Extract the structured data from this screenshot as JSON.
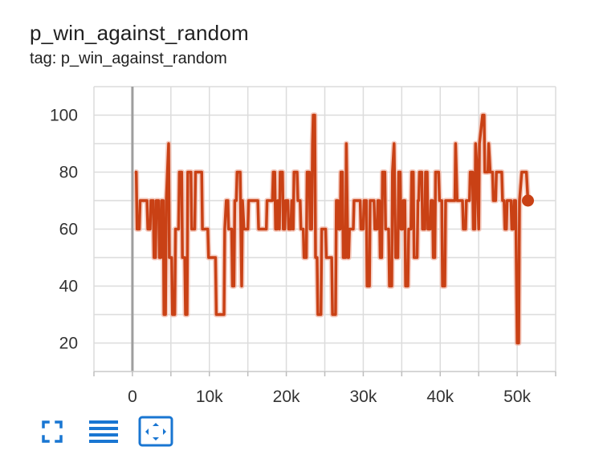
{
  "card": {
    "title": "p_win_against_random",
    "subtitle": "tag: p_win_against_random"
  },
  "toolbar": {
    "buttons": [
      {
        "icon": "fullscreen-icon"
      },
      {
        "icon": "toggle-y-log-icon"
      },
      {
        "icon": "fit-domain-icon"
      }
    ]
  },
  "chart_data": {
    "type": "line",
    "title": "",
    "xlabel": "",
    "ylabel": "",
    "xlim": [
      -5000,
      55000
    ],
    "ylim": [
      10,
      110
    ],
    "x_ticks": [
      0,
      10000,
      20000,
      30000,
      40000,
      50000
    ],
    "x_tick_labels": [
      "0",
      "10k",
      "20k",
      "30k",
      "40k",
      "50k"
    ],
    "y_ticks": [
      20,
      40,
      60,
      80,
      100
    ],
    "y_tick_labels": [
      "20",
      "40",
      "60",
      "80",
      "100"
    ],
    "grid": true,
    "line_color": "#c94115",
    "shadow_color": "#f1b8a8",
    "series": [
      {
        "name": "",
        "values": [
          [
            300,
            80
          ],
          [
            500,
            80
          ],
          [
            600,
            60
          ],
          [
            900,
            60
          ],
          [
            1000,
            70
          ],
          [
            1900,
            70
          ],
          [
            2000,
            60
          ],
          [
            2300,
            60
          ],
          [
            2400,
            70
          ],
          [
            2700,
            70
          ],
          [
            2800,
            50
          ],
          [
            3000,
            50
          ],
          [
            3100,
            70
          ],
          [
            3400,
            70
          ],
          [
            3500,
            50
          ],
          [
            3700,
            50
          ],
          [
            3800,
            70
          ],
          [
            4000,
            70
          ],
          [
            4100,
            30
          ],
          [
            4300,
            30
          ],
          [
            4400,
            70
          ],
          [
            4700,
            90
          ],
          [
            4800,
            50
          ],
          [
            5100,
            50
          ],
          [
            5200,
            30
          ],
          [
            5500,
            30
          ],
          [
            5600,
            60
          ],
          [
            6000,
            60
          ],
          [
            6100,
            80
          ],
          [
            6400,
            80
          ],
          [
            6500,
            50
          ],
          [
            6800,
            50
          ],
          [
            6900,
            30
          ],
          [
            7100,
            30
          ],
          [
            7200,
            80
          ],
          [
            7600,
            80
          ],
          [
            7700,
            60
          ],
          [
            8100,
            60
          ],
          [
            8200,
            80
          ],
          [
            9000,
            80
          ],
          [
            9100,
            60
          ],
          [
            9800,
            60
          ],
          [
            9900,
            50
          ],
          [
            10800,
            50
          ],
          [
            10900,
            30
          ],
          [
            11900,
            30
          ],
          [
            12000,
            60
          ],
          [
            12200,
            70
          ],
          [
            12400,
            70
          ],
          [
            12500,
            60
          ],
          [
            12900,
            60
          ],
          [
            13000,
            40
          ],
          [
            13200,
            40
          ],
          [
            13300,
            70
          ],
          [
            13500,
            70
          ],
          [
            13600,
            80
          ],
          [
            14000,
            80
          ],
          [
            14100,
            60
          ],
          [
            14200,
            40
          ],
          [
            14300,
            70
          ],
          [
            14500,
            60
          ],
          [
            15000,
            60
          ],
          [
            15100,
            70
          ],
          [
            16300,
            70
          ],
          [
            16400,
            60
          ],
          [
            17400,
            60
          ],
          [
            17500,
            70
          ],
          [
            18200,
            70
          ],
          [
            18300,
            80
          ],
          [
            18500,
            80
          ],
          [
            18600,
            60
          ],
          [
            18800,
            60
          ],
          [
            18900,
            70
          ],
          [
            19100,
            60
          ],
          [
            19200,
            80
          ],
          [
            19500,
            80
          ],
          [
            19600,
            60
          ],
          [
            19800,
            60
          ],
          [
            19900,
            70
          ],
          [
            20200,
            70
          ],
          [
            20300,
            60
          ],
          [
            20600,
            60
          ],
          [
            20700,
            70
          ],
          [
            20900,
            60
          ],
          [
            21000,
            80
          ],
          [
            21400,
            80
          ],
          [
            21500,
            70
          ],
          [
            21800,
            70
          ],
          [
            21900,
            60
          ],
          [
            22200,
            60
          ],
          [
            22300,
            50
          ],
          [
            22600,
            50
          ],
          [
            22700,
            80
          ],
          [
            23000,
            80
          ],
          [
            23100,
            60
          ],
          [
            23300,
            60
          ],
          [
            23400,
            90
          ],
          [
            23500,
            100
          ],
          [
            23700,
            100
          ],
          [
            23800,
            50
          ],
          [
            24000,
            50
          ],
          [
            24100,
            30
          ],
          [
            24500,
            30
          ],
          [
            24600,
            60
          ],
          [
            25100,
            60
          ],
          [
            25200,
            50
          ],
          [
            25900,
            50
          ],
          [
            26000,
            30
          ],
          [
            26400,
            30
          ],
          [
            26500,
            70
          ],
          [
            26700,
            70
          ],
          [
            26800,
            60
          ],
          [
            27000,
            60
          ],
          [
            27100,
            80
          ],
          [
            27300,
            80
          ],
          [
            27400,
            50
          ],
          [
            27700,
            50
          ],
          [
            27800,
            90
          ],
          [
            28000,
            50
          ],
          [
            28100,
            50
          ],
          [
            28200,
            60
          ],
          [
            28700,
            60
          ],
          [
            28800,
            70
          ],
          [
            29600,
            70
          ],
          [
            29700,
            60
          ],
          [
            30000,
            60
          ],
          [
            30100,
            70
          ],
          [
            30400,
            70
          ],
          [
            30500,
            40
          ],
          [
            30800,
            40
          ],
          [
            30900,
            70
          ],
          [
            31400,
            70
          ],
          [
            31500,
            60
          ],
          [
            31800,
            60
          ],
          [
            31900,
            70
          ],
          [
            32100,
            70
          ],
          [
            32200,
            50
          ],
          [
            32400,
            50
          ],
          [
            32500,
            80
          ],
          [
            32800,
            80
          ],
          [
            32900,
            60
          ],
          [
            33300,
            60
          ],
          [
            33400,
            40
          ],
          [
            33700,
            40
          ],
          [
            33800,
            80
          ],
          [
            34000,
            90
          ],
          [
            34200,
            50
          ],
          [
            34500,
            50
          ],
          [
            34600,
            80
          ],
          [
            34800,
            80
          ],
          [
            34900,
            60
          ],
          [
            35100,
            60
          ],
          [
            35200,
            70
          ],
          [
            35400,
            70
          ],
          [
            35500,
            40
          ],
          [
            35800,
            40
          ],
          [
            35900,
            60
          ],
          [
            36200,
            60
          ],
          [
            36300,
            80
          ],
          [
            36500,
            80
          ],
          [
            36600,
            50
          ],
          [
            37000,
            50
          ],
          [
            37100,
            70
          ],
          [
            37200,
            70
          ],
          [
            37300,
            80
          ],
          [
            37600,
            80
          ],
          [
            37700,
            60
          ],
          [
            38000,
            60
          ],
          [
            38100,
            80
          ],
          [
            38300,
            80
          ],
          [
            38400,
            60
          ],
          [
            38700,
            60
          ],
          [
            38800,
            70
          ],
          [
            39000,
            70
          ],
          [
            39100,
            50
          ],
          [
            39300,
            50
          ],
          [
            39400,
            80
          ],
          [
            39800,
            80
          ],
          [
            39900,
            70
          ],
          [
            40200,
            70
          ],
          [
            40300,
            40
          ],
          [
            40600,
            40
          ],
          [
            40700,
            70
          ],
          [
            41900,
            70
          ],
          [
            42000,
            90
          ],
          [
            42200,
            70
          ],
          [
            42900,
            70
          ],
          [
            43000,
            60
          ],
          [
            43300,
            60
          ],
          [
            43400,
            70
          ],
          [
            43800,
            70
          ],
          [
            43900,
            80
          ],
          [
            44200,
            80
          ],
          [
            44300,
            60
          ],
          [
            44500,
            60
          ],
          [
            44600,
            90
          ],
          [
            44800,
            80
          ],
          [
            45000,
            60
          ],
          [
            45100,
            90
          ],
          [
            45500,
            100
          ],
          [
            45700,
            100
          ],
          [
            45800,
            80
          ],
          [
            46200,
            80
          ],
          [
            46300,
            90
          ],
          [
            46500,
            80
          ],
          [
            46800,
            80
          ],
          [
            46900,
            70
          ],
          [
            47200,
            70
          ],
          [
            47300,
            80
          ],
          [
            48000,
            80
          ],
          [
            48100,
            70
          ],
          [
            48300,
            70
          ],
          [
            48400,
            60
          ],
          [
            48600,
            60
          ],
          [
            48700,
            70
          ],
          [
            49200,
            70
          ],
          [
            49300,
            60
          ],
          [
            49500,
            60
          ],
          [
            49600,
            70
          ],
          [
            49800,
            70
          ],
          [
            50000,
            20
          ],
          [
            50200,
            20
          ],
          [
            50300,
            70
          ],
          [
            50600,
            80
          ],
          [
            51200,
            80
          ],
          [
            51400,
            70
          ]
        ]
      }
    ]
  }
}
